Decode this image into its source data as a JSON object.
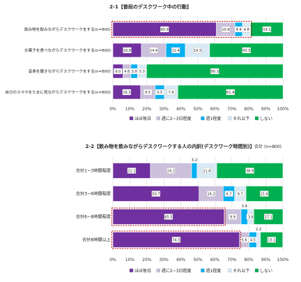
{
  "colors": {
    "every_day": "#7030a0",
    "two_three_week": "#cbc0dc",
    "once_week": "#00b0f0",
    "less": "#d9eaf5",
    "never": "#00b050",
    "highlight": "#c00000"
  },
  "chart_data": [
    {
      "type": "bar",
      "orientation": "horizontal",
      "stacked": true,
      "title": "2-1【普段のデスクワーク中の行動】",
      "categories": [
        "飲み物を飲みながらデスクワークをする(n=800)",
        "お菓子を食べながらデスクワークをする(n=800)",
        "音楽を聴きながらデスクワークをする(n=800)",
        "自分のスマホをたまに見ながらデスクワークをする(n=800)"
      ],
      "series": [
        {
          "name": "ほぼ毎日",
          "values": [
            60.9,
            16.8,
            6.0,
            16.3
          ]
        },
        {
          "name": "週に2~3日程度",
          "values": [
            10.9,
            14.4,
            4.6,
            8.5
          ]
        },
        {
          "name": "週1程度",
          "values": [
            4.4,
            11.4,
            3.9,
            5.5
          ]
        },
        {
          "name": "それ以下",
          "values": [
            4.8,
            14.3,
            5.3,
            7.9
          ]
        },
        {
          "name": "しない",
          "values": [
            19.1,
            43.3,
            80.3,
            61.9
          ]
        }
      ],
      "xlim": [
        0,
        100
      ],
      "xticks": [
        "0%",
        "10%",
        "20%",
        "30%",
        "40%",
        "50%",
        "60%",
        "70%",
        "80%",
        "90%",
        "100%"
      ],
      "highlight_rows": [
        0
      ],
      "legend": "bottom"
    },
    {
      "type": "bar",
      "orientation": "horizontal",
      "stacked": true,
      "title": "2-2【飲み物を飲みながらデスクワークする人の内訳(デスクワーク時間別)】",
      "subtitle": "合計 (n=800)",
      "categories": [
        "合計1~3時間程度",
        "合計3~6時間程度",
        "合計6~8時間程度",
        "合計8時間以上"
      ],
      "series": [
        {
          "name": "ほぼ毎日",
          "values": [
            22.1,
            50.7,
            65.5,
            74.5
          ]
        },
        {
          "name": "週に2~3日程度",
          "values": [
            24.2,
            14.2,
            9.9,
            5.6
          ]
        },
        {
          "name": "週1程度",
          "values": [
            3.2,
            6.7,
            3.9,
            4.5
          ]
        },
        {
          "name": "それ以下",
          "values": [
            11.6,
            6.7,
            3.6,
            2.2
          ]
        },
        {
          "name": "しない",
          "values": [
            38.9,
            21.6,
            17.1,
            13.1
          ]
        }
      ],
      "xlim": [
        0,
        100
      ],
      "xticks": [
        "0%",
        "10%",
        "20%",
        "30%",
        "40%",
        "50%",
        "60%",
        "70%",
        "80%",
        "90%",
        "100%"
      ],
      "highlight_rows": [
        2,
        3
      ],
      "legend": "bottom"
    }
  ]
}
